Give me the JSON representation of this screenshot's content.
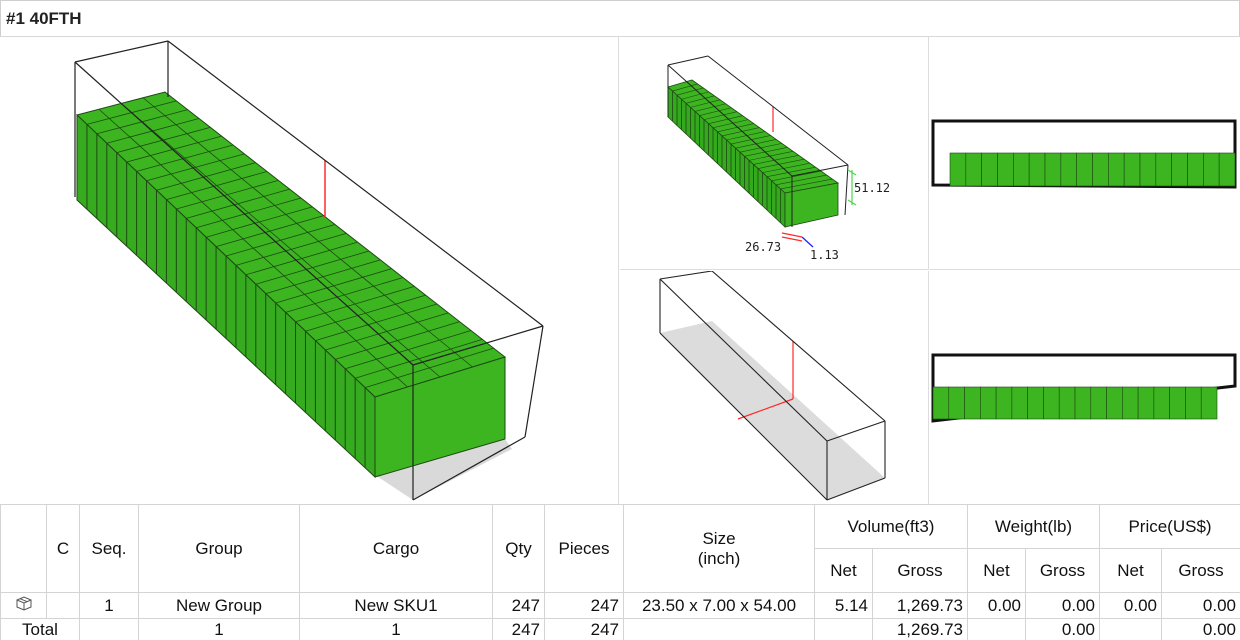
{
  "header": {
    "title": "#1 40FTH"
  },
  "colors": {
    "cargo": "#3cb521",
    "cargo_edge": "#1d4a12",
    "guide": "#ff2a2a",
    "floor": "#d9d9d9",
    "axis_green": "#4cd64c",
    "axis_blue": "#1a1aff"
  },
  "views": {
    "iso_dims": {
      "height": "51.12",
      "left": "26.73",
      "right": "1.13"
    }
  },
  "table": {
    "headers": {
      "c": "C",
      "seq": "Seq.",
      "group": "Group",
      "cargo": "Cargo",
      "qty": "Qty",
      "pieces": "Pieces",
      "size": "Size",
      "size_unit": "(inch)",
      "volume": "Volume(ft3)",
      "weight": "Weight(lb)",
      "price": "Price(US$)",
      "net": "Net",
      "gross": "Gross"
    },
    "row": {
      "icon": "box-icon",
      "seq": "1",
      "group": "New Group",
      "cargo": "New SKU1",
      "qty": "247",
      "pieces": "247",
      "size": "23.50 x 7.00 x 54.00",
      "vol_net": "5.14",
      "vol_gross": "1,269.73",
      "wt_net": "0.00",
      "wt_gross": "0.00",
      "pr_net": "0.00",
      "pr_gross": "0.00"
    },
    "total": {
      "label": "Total",
      "group": "1",
      "cargo": "1",
      "qty": "247",
      "pieces": "247",
      "vol_gross": "1,269.73",
      "wt_gross": "0.00",
      "pr_gross": "0.00"
    }
  }
}
